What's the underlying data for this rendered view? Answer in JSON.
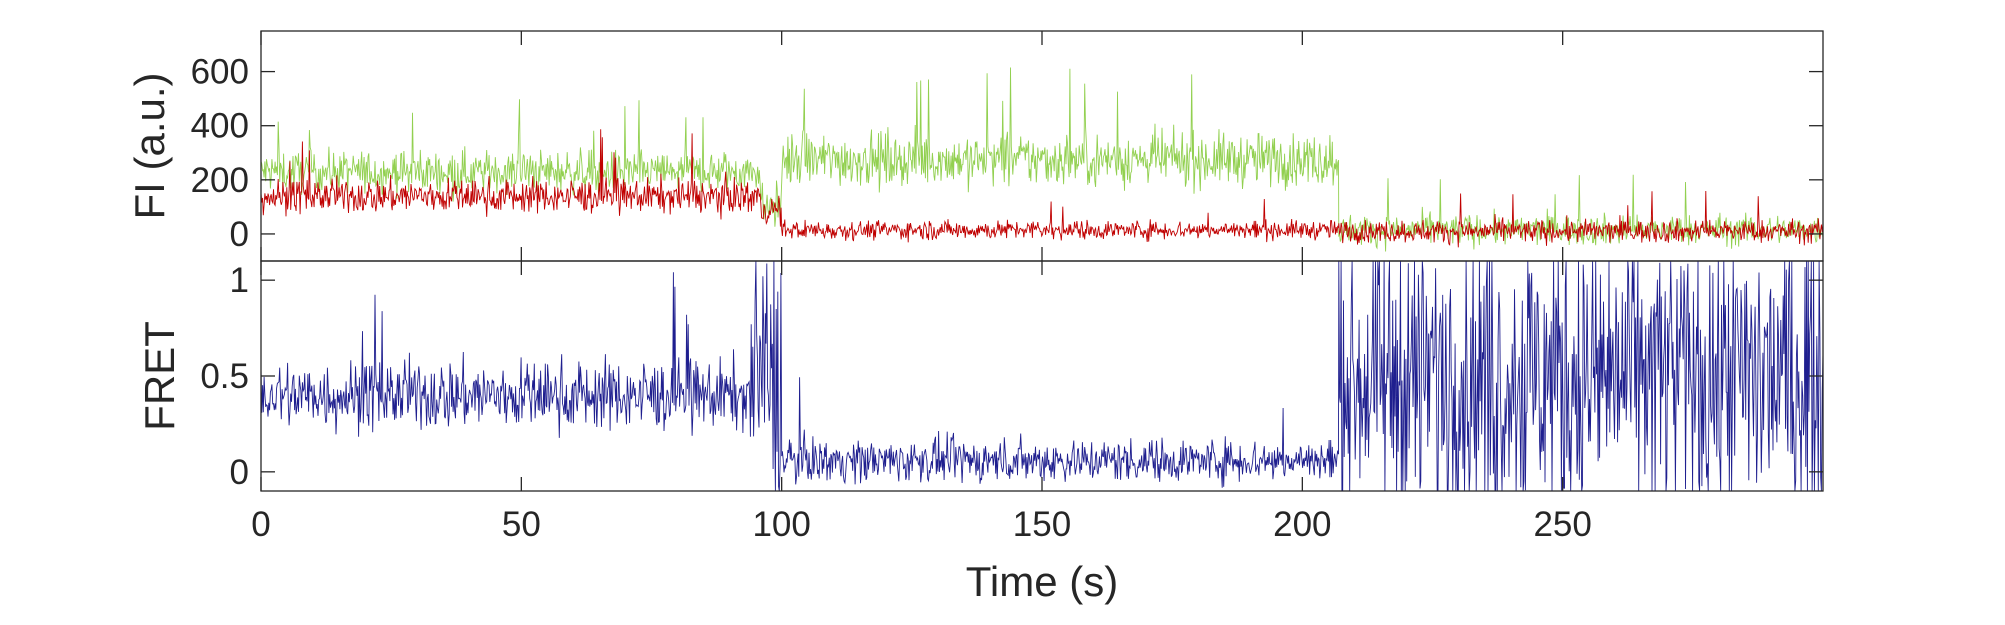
{
  "chart_data": [
    {
      "type": "line",
      "ylabel": "FI (a.u.)",
      "xlim": [
        0,
        300
      ],
      "ylim": [
        -100,
        750
      ],
      "yticks": [
        0,
        200,
        400,
        600
      ],
      "ytick_labels": [
        "0",
        "200",
        "400",
        "600"
      ],
      "grid": false,
      "series": [
        {
          "color": "#92d050",
          "segments": [
            {
              "x0": 0,
              "x1": 96,
              "mean": 230,
              "noise": 55,
              "spike_max": 510
            },
            {
              "x0": 96,
              "x1": 100,
              "mean": 100,
              "noise": 60,
              "note_values": [
                0,
                250
              ]
            },
            {
              "x0": 100,
              "x1": 207,
              "mean": 275,
              "noise": 70,
              "spike_max": 620
            },
            {
              "x0": 207,
              "x1": 300,
              "mean": 15,
              "noise": 40,
              "spike_max": 220
            }
          ]
        },
        {
          "color": "#c00000",
          "segments": [
            {
              "x0": 0,
              "x1": 96,
              "mean": 140,
              "noise": 45,
              "spike_max": 390
            },
            {
              "x0": 96,
              "x1": 100,
              "mean": 90,
              "noise": 40
            },
            {
              "x0": 100,
              "x1": 207,
              "mean": 15,
              "noise": 25,
              "spike_max": 140
            },
            {
              "x0": 207,
              "x1": 300,
              "mean": 10,
              "noise": 30,
              "spike_max": 160
            }
          ]
        }
      ]
    },
    {
      "type": "line",
      "xlabel": "Time (s)",
      "ylabel": "FRET",
      "xlim": [
        0,
        300
      ],
      "ylim": [
        -0.1,
        1.1
      ],
      "xticks": [
        0,
        50,
        100,
        150,
        200,
        250
      ],
      "xtick_labels": [
        "0",
        "50",
        "100",
        "150",
        "200",
        "250"
      ],
      "yticks": [
        0,
        0.5,
        1
      ],
      "ytick_labels": [
        "0",
        "0.5",
        "1"
      ],
      "grid": false,
      "series": [
        {
          "color": "#1f1f8f",
          "segments": [
            {
              "x0": 0,
              "x1": 94,
              "mean": 0.4,
              "noise": 0.13,
              "spike_max": 1.05
            },
            {
              "x0": 94,
              "x1": 100,
              "mean": 0.5,
              "noise": 0.5
            },
            {
              "x0": 100,
              "x1": 207,
              "mean": 0.06,
              "noise": 0.08,
              "spike_max": 0.6
            },
            {
              "x0": 207,
              "x1": 300,
              "mean": 0.5,
              "noise": 0.55,
              "clipped_to": [
                -0.1,
                1.1
              ]
            }
          ]
        }
      ]
    }
  ]
}
